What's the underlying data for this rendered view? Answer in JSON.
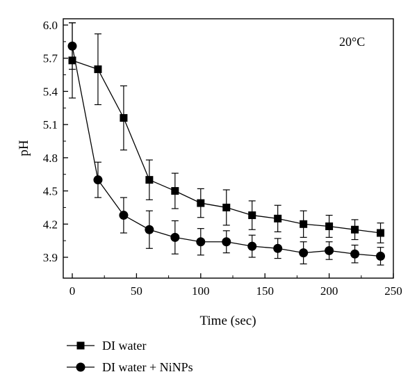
{
  "chart_data": {
    "type": "line",
    "title": "",
    "xlabel": "Time (sec)",
    "ylabel": "pH",
    "xlim": [
      0,
      250
    ],
    "ylim": [
      3.8,
      6.05
    ],
    "x_ticks": [
      0,
      50,
      100,
      150,
      200,
      250
    ],
    "x_tick_labels": [
      "0",
      "50",
      "100",
      "150",
      "200",
      "250"
    ],
    "y_ticks": [
      3.9,
      4.2,
      4.5,
      4.8,
      5.1,
      5.4,
      5.7,
      6.0
    ],
    "y_tick_labels": [
      "3.9",
      "4.2",
      "4.5",
      "4.8",
      "5.1",
      "5.4",
      "5.7",
      "6.0"
    ],
    "grid": false,
    "legend_position": "bottom-left",
    "annotation": "20°C",
    "series": [
      {
        "name": "DI water",
        "marker": "square",
        "x": [
          0,
          20,
          40,
          60,
          80,
          100,
          120,
          140,
          160,
          180,
          200,
          220,
          240
        ],
        "y": [
          5.68,
          5.6,
          5.16,
          4.6,
          4.5,
          4.39,
          4.35,
          4.28,
          4.25,
          4.2,
          4.18,
          4.15,
          4.12
        ],
        "error": [
          0.34,
          0.32,
          0.29,
          0.18,
          0.16,
          0.13,
          0.16,
          0.13,
          0.12,
          0.12,
          0.1,
          0.09,
          0.09
        ]
      },
      {
        "name": "DI water + NiNPs",
        "marker": "circle",
        "x": [
          0,
          20,
          40,
          60,
          80,
          100,
          120,
          140,
          160,
          180,
          200,
          220,
          240
        ],
        "y": [
          5.81,
          4.6,
          4.28,
          4.15,
          4.08,
          4.04,
          4.04,
          4.0,
          3.98,
          3.94,
          3.96,
          3.93,
          3.91
        ],
        "error": [
          0.21,
          0.16,
          0.16,
          0.17,
          0.15,
          0.12,
          0.1,
          0.1,
          0.09,
          0.1,
          0.08,
          0.08,
          0.08
        ]
      }
    ]
  }
}
